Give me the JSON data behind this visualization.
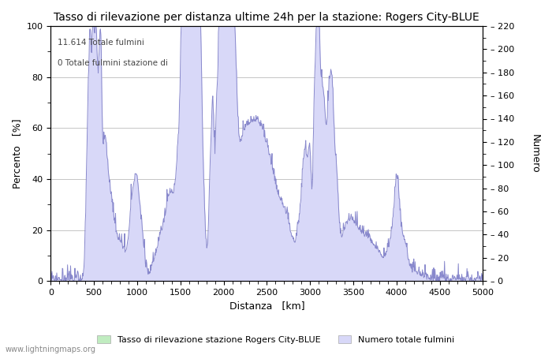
{
  "title": "Tasso di rilevazione per distanza ultime 24h per la stazione: Rogers City-BLUE",
  "xlabel": "Distanza   [km]",
  "ylabel_left": "Percento   [%]",
  "ylabel_right": "Numero",
  "annotation_line1": "11.614 Totale fulmini",
  "annotation_line2": "0 Totale fulmini stazione di",
  "xlim": [
    0,
    5000
  ],
  "ylim_left": [
    0,
    100
  ],
  "ylim_right": [
    0,
    220
  ],
  "xticks": [
    0,
    500,
    1000,
    1500,
    2000,
    2500,
    3000,
    3500,
    4000,
    4500,
    5000
  ],
  "yticks_left": [
    0,
    20,
    40,
    60,
    80,
    100
  ],
  "yticks_right": [
    0,
    20,
    40,
    60,
    80,
    100,
    120,
    140,
    160,
    180,
    200,
    220
  ],
  "legend_label_green": "Tasso di rilevazione stazione Rogers City-BLUE",
  "legend_label_blue": "Numero totale fulmini",
  "fill_color_blue": "#d8d8f8",
  "fill_color_green": "#c0ecc0",
  "line_color": "#8888cc",
  "watermark": "www.lightningmaps.org",
  "background_color": "#ffffff",
  "grid_color": "#bbbbbb",
  "title_fontsize": 10,
  "axis_fontsize": 9,
  "tick_fontsize": 8,
  "figsize": [
    7.0,
    4.5
  ],
  "dpi": 100
}
